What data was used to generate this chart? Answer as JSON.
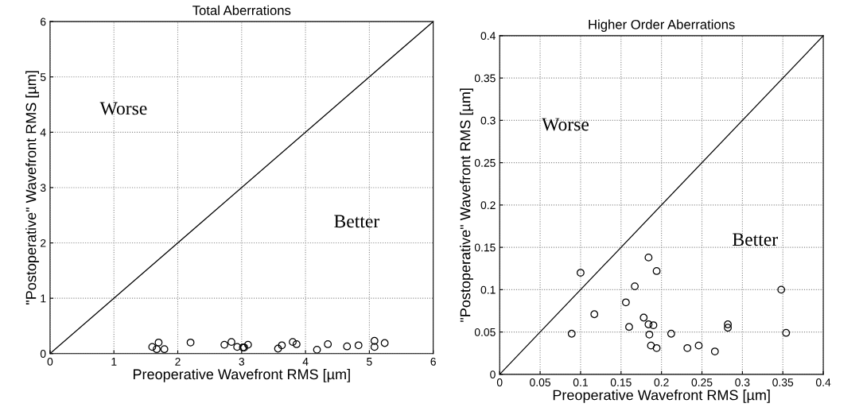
{
  "chart_data": [
    {
      "type": "scatter",
      "title": "Total Aberrations",
      "xlabel": "Preoperative Wavefront RMS [µm]",
      "ylabel": "\"Postoperative\" Wavefront RMS [µm]",
      "xlim": [
        0,
        6
      ],
      "ylim": [
        0,
        6
      ],
      "xticks": [
        0,
        1,
        2,
        3,
        4,
        5,
        6
      ],
      "yticks": [
        0,
        1,
        2,
        3,
        4,
        5,
        6
      ],
      "grid": true,
      "marker": "circle",
      "annotations": [
        "Worse",
        "Better"
      ],
      "series": [
        {
          "color": "#000000",
          "x": [
            1.6,
            1.7,
            1.67,
            1.79,
            2.2,
            2.73,
            2.84,
            2.93,
            3.02,
            3.04,
            3.1,
            3.57,
            3.63,
            3.8,
            3.86,
            4.18,
            4.35,
            4.65,
            4.83,
            5.08,
            5.08,
            5.24
          ],
          "values": [
            0.12,
            0.2,
            0.08,
            0.08,
            0.2,
            0.16,
            0.21,
            0.12,
            0.11,
            0.11,
            0.16,
            0.09,
            0.15,
            0.21,
            0.17,
            0.07,
            0.17,
            0.13,
            0.15,
            0.23,
            0.12,
            0.19
          ]
        },
        {
          "type": "line",
          "color": "#000000",
          "marker": "none",
          "line_style": "solid",
          "x": [
            0,
            6
          ],
          "values": [
            0,
            6
          ]
        }
      ]
    },
    {
      "type": "scatter",
      "title": "Higher Order Aberrations",
      "xlabel": "Preoperative Wavefront RMS [µm]",
      "ylabel": "\"Postoperative\" Wavefront RMS [µm]",
      "xlim": [
        0,
        0.4
      ],
      "ylim": [
        0,
        0.4
      ],
      "xticks": [
        0,
        0.05,
        0.1,
        0.15,
        0.2,
        0.25,
        0.3,
        0.35,
        0.4
      ],
      "yticks": [
        0,
        0.05,
        0.1,
        0.15,
        0.2,
        0.25,
        0.3,
        0.35,
        0.4
      ],
      "grid": true,
      "marker": "circle",
      "annotations": [
        "Worse",
        "Better"
      ],
      "series": [
        {
          "color": "#000000",
          "x": [
            0.089,
            0.1,
            0.117,
            0.156,
            0.16,
            0.167,
            0.178,
            0.184,
            0.184,
            0.185,
            0.187,
            0.19,
            0.194,
            0.194,
            0.212,
            0.232,
            0.246,
            0.266,
            0.282,
            0.282,
            0.348,
            0.354
          ],
          "values": [
            0.048,
            0.12,
            0.071,
            0.085,
            0.056,
            0.104,
            0.067,
            0.138,
            0.059,
            0.047,
            0.034,
            0.058,
            0.031,
            0.122,
            0.048,
            0.031,
            0.034,
            0.027,
            0.059,
            0.055,
            0.1,
            0.049
          ]
        },
        {
          "type": "line",
          "color": "#000000",
          "marker": "none",
          "line_style": "solid",
          "x": [
            0,
            0.4
          ],
          "values": [
            0,
            0.4
          ]
        }
      ]
    }
  ]
}
